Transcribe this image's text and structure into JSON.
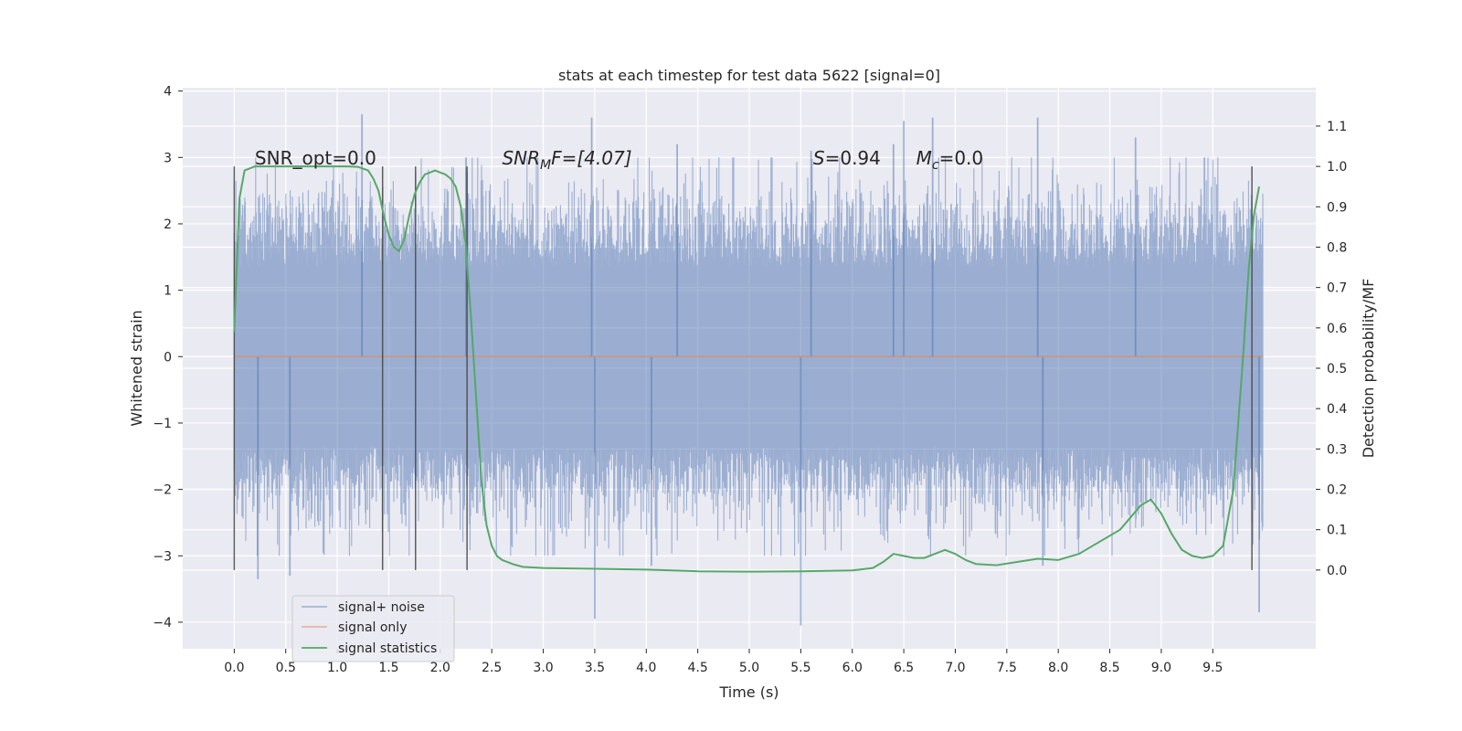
{
  "chart_data": {
    "type": "line",
    "title": "stats at each timestep for test data 5622 [signal=0]",
    "xlabel": "Time (s)",
    "ylabel": "Whitened strain",
    "y2label": "Detection probability/MF",
    "xlim": [
      -0.5,
      10.5
    ],
    "ylim": [
      -4.4,
      4.05
    ],
    "y2lim": [
      -0.195,
      1.195
    ],
    "x_ticks": [
      0.0,
      0.5,
      1.0,
      1.5,
      2.0,
      2.5,
      3.0,
      3.5,
      4.0,
      4.5,
      5.0,
      5.5,
      6.0,
      6.5,
      7.0,
      7.5,
      8.0,
      8.5,
      9.0,
      9.5
    ],
    "x_tick_labels": [
      "0.0",
      "0.5",
      "1.0",
      "1.5",
      "2.0",
      "2.5",
      "3.0",
      "3.5",
      "4.0",
      "4.5",
      "5.0",
      "5.5",
      "6.0",
      "6.5",
      "7.0",
      "7.5",
      "8.0",
      "8.5",
      "9.0",
      "9.5"
    ],
    "y_ticks": [
      -4,
      -3,
      -2,
      -1,
      0,
      1,
      2,
      3,
      4
    ],
    "y_tick_labels": [
      "−4",
      "−3",
      "−2",
      "−1",
      "0",
      "1",
      "2",
      "3",
      "4"
    ],
    "y2_ticks": [
      0.0,
      0.1,
      0.2,
      0.3,
      0.4,
      0.5,
      0.6,
      0.7,
      0.8,
      0.9,
      1.0,
      1.1
    ],
    "y2_tick_labels": [
      "0.0",
      "0.1",
      "0.2",
      "0.3",
      "0.4",
      "0.5",
      "0.6",
      "0.7",
      "0.8",
      "0.9",
      "1.0",
      "1.1"
    ],
    "grid": true,
    "legend_position": "lower-left",
    "series": [
      {
        "name": "signal+ noise",
        "color": "#4c72b0",
        "x_range": [
          0.0,
          9.99
        ],
        "spikes": [
          {
            "x": 0.23,
            "y": -3.35
          },
          {
            "x": 0.54,
            "y": -3.3
          },
          {
            "x": 1.24,
            "y": 3.65
          },
          {
            "x": 2.25,
            "y": 3.0
          },
          {
            "x": 3.47,
            "y": 3.6
          },
          {
            "x": 3.5,
            "y": -3.95
          },
          {
            "x": 4.05,
            "y": -3.15
          },
          {
            "x": 4.3,
            "y": 3.2
          },
          {
            "x": 5.5,
            "y": -4.05
          },
          {
            "x": 5.6,
            "y": 3.1
          },
          {
            "x": 6.4,
            "y": 3.2
          },
          {
            "x": 6.5,
            "y": 3.55
          },
          {
            "x": 6.78,
            "y": 3.6
          },
          {
            "x": 7.8,
            "y": 3.6
          },
          {
            "x": 7.85,
            "y": -3.15
          },
          {
            "x": 8.75,
            "y": 3.3
          },
          {
            "x": 9.95,
            "y": -3.85
          }
        ]
      },
      {
        "name": "signal only",
        "color": "#dd8452",
        "x": [
          0.0,
          9.99
        ],
        "y": [
          0.0,
          0.0
        ]
      },
      {
        "name": "signal statistics",
        "color": "#55a868",
        "axis": "right",
        "x": [
          0.0,
          0.05,
          0.1,
          0.15,
          0.2,
          0.3,
          0.5,
          0.8,
          1.0,
          1.1,
          1.2,
          1.3,
          1.35,
          1.4,
          1.45,
          1.5,
          1.55,
          1.6,
          1.65,
          1.7,
          1.75,
          1.8,
          1.85,
          1.9,
          1.95,
          2.0,
          2.05,
          2.1,
          2.15,
          2.2,
          2.25,
          2.3,
          2.35,
          2.4,
          2.45,
          2.5,
          2.55,
          2.6,
          2.7,
          2.8,
          3.0,
          3.5,
          4.0,
          4.5,
          5.0,
          5.5,
          6.0,
          6.2,
          6.3,
          6.4,
          6.5,
          6.6,
          6.7,
          6.8,
          6.9,
          7.0,
          7.1,
          7.2,
          7.4,
          7.6,
          7.8,
          8.0,
          8.2,
          8.4,
          8.6,
          8.8,
          8.9,
          9.0,
          9.1,
          9.2,
          9.3,
          9.4,
          9.5,
          9.6,
          9.7,
          9.8,
          9.85,
          9.9,
          9.95
        ],
        "y": [
          0.59,
          0.92,
          0.99,
          0.995,
          1.0,
          1.0,
          1.0,
          1.0,
          1.0,
          1.0,
          0.999,
          0.99,
          0.97,
          0.94,
          0.88,
          0.83,
          0.8,
          0.79,
          0.82,
          0.88,
          0.93,
          0.96,
          0.98,
          0.985,
          0.99,
          0.985,
          0.98,
          0.97,
          0.95,
          0.9,
          0.8,
          0.62,
          0.42,
          0.22,
          0.11,
          0.06,
          0.035,
          0.025,
          0.015,
          0.008,
          0.005,
          0.003,
          0.001,
          -0.003,
          -0.004,
          -0.003,
          -0.001,
          0.005,
          0.02,
          0.04,
          0.035,
          0.03,
          0.03,
          0.04,
          0.05,
          0.04,
          0.025,
          0.015,
          0.012,
          0.02,
          0.028,
          0.025,
          0.04,
          0.07,
          0.1,
          0.16,
          0.175,
          0.14,
          0.09,
          0.05,
          0.035,
          0.03,
          0.035,
          0.06,
          0.2,
          0.55,
          0.75,
          0.88,
          0.95
        ]
      }
    ],
    "vlines": [
      0.0,
      1.44,
      1.76,
      2.26,
      9.88
    ],
    "vline_range": [
      0.0,
      1.0
    ],
    "annotations": [
      {
        "id": "snr-opt",
        "text": "SNR_opt=0.0",
        "x": 0.2,
        "y": 1.0
      },
      {
        "id": "snr-mf",
        "text": "SNRMF=[4.07]",
        "main": "SNR",
        "sub": "M",
        "rest": "F=[4.07]",
        "x": 2.6,
        "y": 1.0
      },
      {
        "id": "s-stat",
        "text": "S=0.94",
        "main": "S",
        "rest": "=0.94",
        "x": 5.62,
        "y": 1.0
      },
      {
        "id": "mc",
        "text": "Mc=0.0",
        "main": "M",
        "sub": "c",
        "rest": "=0.0",
        "x": 6.62,
        "y": 1.0
      }
    ],
    "legend": [
      "signal+ noise",
      "signal only",
      "signal statistics"
    ]
  }
}
